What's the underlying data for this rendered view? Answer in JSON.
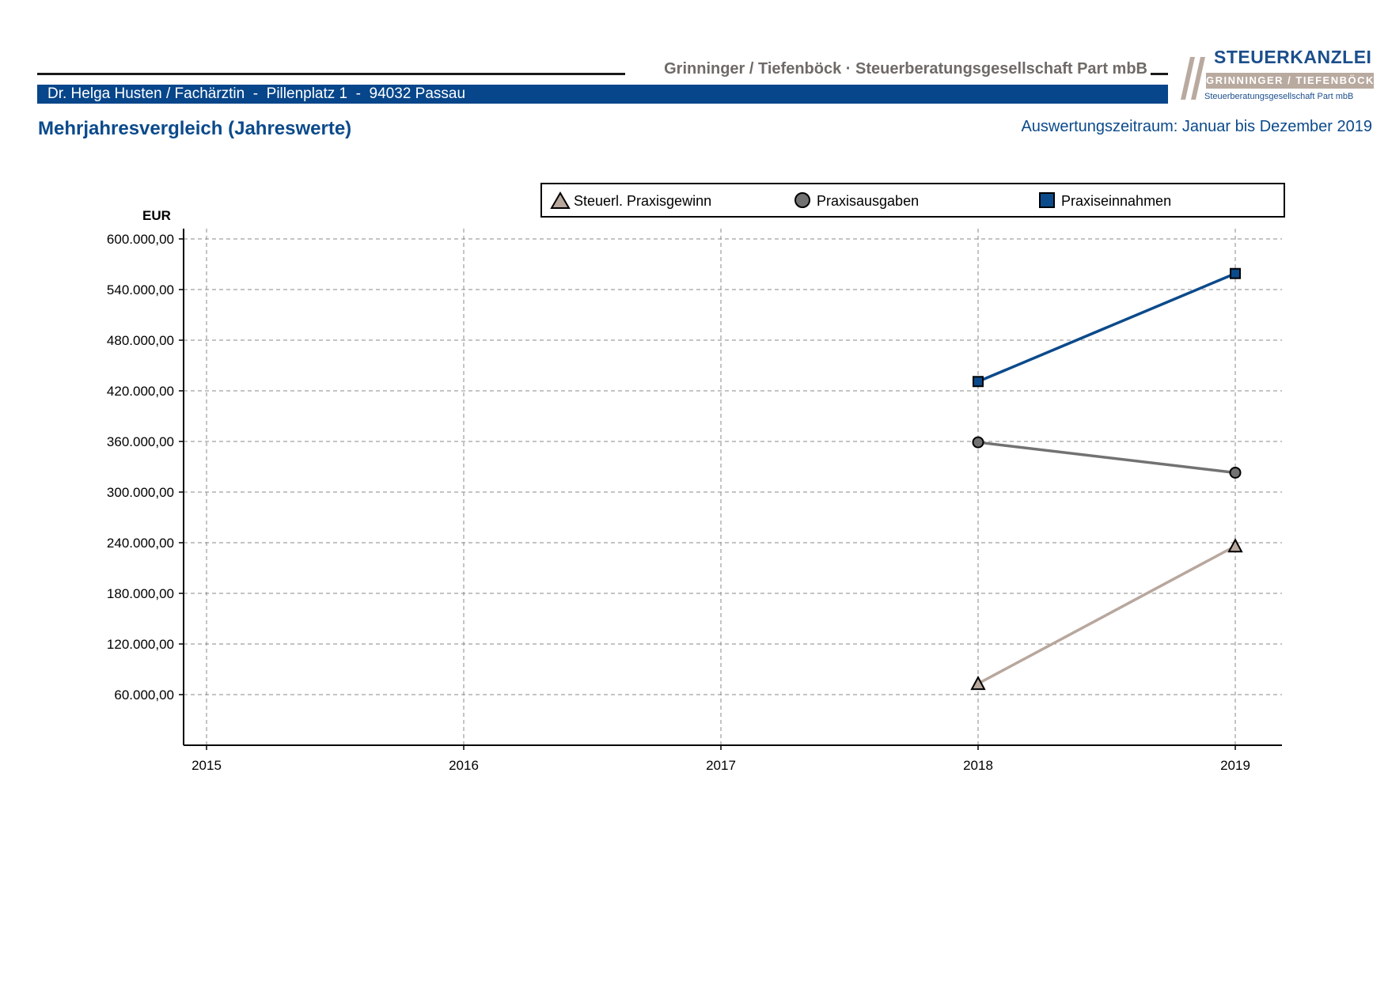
{
  "header": {
    "firm_name": "Grinninger / Tiefenböck · Steuerberatungsgesellschaft Part mbB",
    "client_line": "Dr. Helga Husten / Fachärztin  -  Pillenplatz 1  -  94032 Passau"
  },
  "logo": {
    "title": "STEUERKANZLEI",
    "band": "GRINNINGER / TIEFENBÖCK",
    "subtitle": "Steuerberatungsgesellschaft Part mbB"
  },
  "page": {
    "title": "Mehrjahresvergleich (Jahreswerte)",
    "period": "Auswertungszeitraum: Januar bis Dezember 2019"
  },
  "colors": {
    "brand_blue": "#07468a",
    "income": "#0b4a8b",
    "expenses": "#727272",
    "profit": "#b8a79d"
  },
  "chart_data": {
    "type": "line",
    "ylabel": "EUR",
    "x": [
      "2015",
      "2016",
      "2017",
      "2018",
      "2019"
    ],
    "ylim": [
      0,
      600000
    ],
    "y_ticks": [
      60000,
      120000,
      180000,
      240000,
      300000,
      360000,
      420000,
      480000,
      540000,
      600000
    ],
    "y_tick_labels": [
      "60.000,00",
      "120.000,00",
      "180.000,00",
      "240.000,00",
      "300.000,00",
      "360.000,00",
      "420.000,00",
      "480.000,00",
      "540.000,00",
      "600.000,00"
    ],
    "grid": true,
    "legend_position": "top",
    "series": [
      {
        "name": "Steuerl. Praxisgewinn",
        "marker": "triangle",
        "color": "#b8a79d",
        "values": [
          null,
          null,
          null,
          73000,
          236000
        ]
      },
      {
        "name": "Praxisausgaben",
        "marker": "circle",
        "color": "#727272",
        "values": [
          null,
          null,
          null,
          359000,
          323000
        ]
      },
      {
        "name": "Praxiseinnahmen",
        "marker": "square",
        "color": "#0b4a8b",
        "values": [
          null,
          null,
          null,
          431000,
          559000
        ]
      }
    ]
  }
}
